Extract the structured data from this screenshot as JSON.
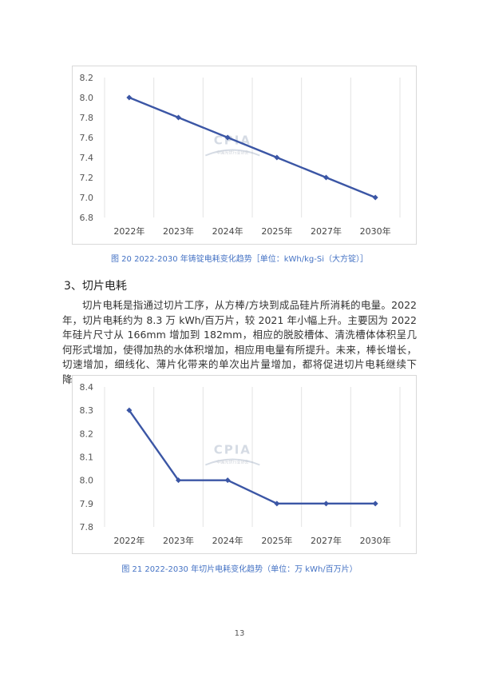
{
  "chart_data": [
    {
      "type": "line",
      "categories": [
        "2022年",
        "2023年",
        "2024年",
        "2025年",
        "2027年",
        "2030年"
      ],
      "series": [
        {
          "values": [
            8.0,
            7.8,
            7.6,
            7.4,
            7.2,
            7.0
          ]
        }
      ],
      "y_ticks": [
        "8.2",
        "8.0",
        "7.8",
        "7.6",
        "7.4",
        "7.2",
        "7.0",
        "6.8"
      ],
      "ylim": [
        6.8,
        8.2
      ],
      "grid": "vertical",
      "color": "#3b56a5",
      "title": ""
    },
    {
      "type": "line",
      "categories": [
        "2022年",
        "2023年",
        "2024年",
        "2025年",
        "2027年",
        "2030年"
      ],
      "series": [
        {
          "values": [
            8.3,
            8.0,
            8.0,
            7.9,
            7.9,
            7.9
          ]
        }
      ],
      "y_ticks": [
        "8.4",
        "8.3",
        "8.2",
        "8.1",
        "8.0",
        "7.9",
        "7.8"
      ],
      "ylim": [
        7.8,
        8.4
      ],
      "grid": "vertical",
      "color": "#3b56a5",
      "title": ""
    }
  ],
  "watermark": {
    "text": "CPIA",
    "subtext": "中国光伏行业协会"
  },
  "captions": {
    "chart1": "图 20   2022-2030 年铸锭电耗变化趋势［单位：kWh/kg-Si（大方锭）］",
    "chart2": "图 21   2022-2030 年切片电耗变化趋势（单位：万 kWh/百万片）"
  },
  "section": {
    "heading": "3、切片电耗",
    "paragraph": "切片电耗是指通过切片工序，从方棒/方块到成品硅片所消耗的电量。2022 年，切片电耗约为 8.3 万 kWh/百万片，较 2021 年小幅上升。主要因为 2022 年硅片尺寸从 166mm 增加到 182mm，相应的脱胶槽体、清洗槽体体积呈几何形式增加，使得加热的水体积增加，相应用电量有所提升。未来，棒长增长，切速增加，细线化、薄片化带来的单次出片量增加，都将促进切片电耗继续下降。"
  },
  "page_number": "13"
}
